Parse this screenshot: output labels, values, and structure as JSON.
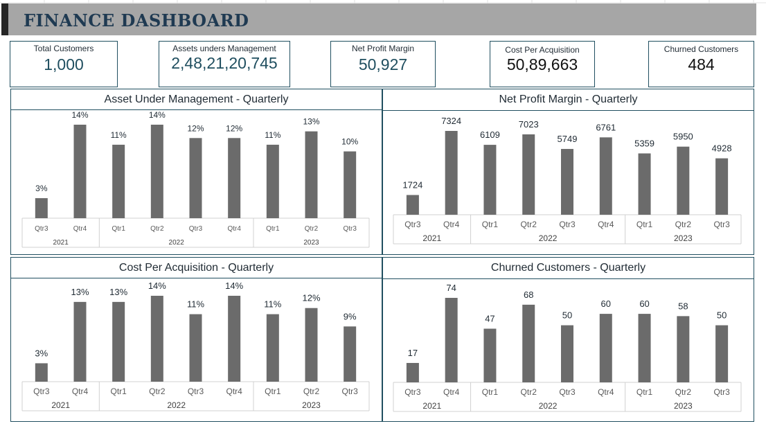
{
  "dashboard": {
    "title": "FINANCE DASHBOARD"
  },
  "kpis": [
    {
      "label": "Total Customers",
      "value": "1,000"
    },
    {
      "label": "Assets unders Management",
      "value": "2,48,21,20,745"
    },
    {
      "label": "Net Profit Margin",
      "value": "50,927"
    },
    {
      "label": "Cost Per Acquisition",
      "value": "50,89,663"
    },
    {
      "label": "Churned Customers",
      "value": "484"
    }
  ],
  "colors": {
    "bar": "#6b6b6b",
    "frame": "#1f4e5f",
    "header": "#a6a6a6",
    "title": "#1f3a52"
  },
  "chart_data": [
    {
      "type": "bar",
      "title": "Asset Under Management - Quarterly",
      "categories": [
        "Qtr3",
        "Qtr4",
        "Qtr1",
        "Qtr2",
        "Qtr3",
        "Qtr4",
        "Qtr1",
        "Qtr2",
        "Qtr3"
      ],
      "groups": [
        {
          "label": "2021",
          "count": 2
        },
        {
          "label": "2022",
          "count": 4
        },
        {
          "label": "2023",
          "count": 3
        }
      ],
      "values": [
        3,
        14,
        11,
        14,
        12,
        12,
        11,
        13,
        10
      ],
      "labels": [
        "3%",
        "14%",
        "11%",
        "14%",
        "12%",
        "12%",
        "11%",
        "13%",
        "10%"
      ],
      "ylim": [
        0,
        14
      ]
    },
    {
      "type": "bar",
      "title": "Net Profit Margin - Quarterly",
      "categories": [
        "Qtr3",
        "Qtr4",
        "Qtr1",
        "Qtr2",
        "Qtr3",
        "Qtr4",
        "Qtr1",
        "Qtr2",
        "Qtr3"
      ],
      "groups": [
        {
          "label": "2021",
          "count": 2
        },
        {
          "label": "2022",
          "count": 4
        },
        {
          "label": "2023",
          "count": 3
        }
      ],
      "values": [
        1724,
        7324,
        6109,
        7023,
        5749,
        6761,
        5359,
        5950,
        4928
      ],
      "labels": [
        "1724",
        "7324",
        "6109",
        "7023",
        "5749",
        "6761",
        "5359",
        "5950",
        "4928"
      ],
      "ylim": [
        0,
        7324
      ]
    },
    {
      "type": "bar",
      "title": "Cost Per Acquisition - Quarterly",
      "categories": [
        "Qtr3",
        "Qtr4",
        "Qtr1",
        "Qtr2",
        "Qtr3",
        "Qtr4",
        "Qtr1",
        "Qtr2",
        "Qtr3"
      ],
      "groups": [
        {
          "label": "2021",
          "count": 2
        },
        {
          "label": "2022",
          "count": 4
        },
        {
          "label": "2023",
          "count": 3
        }
      ],
      "values": [
        3,
        13,
        13,
        14,
        11,
        14,
        11,
        12,
        9
      ],
      "labels": [
        "3%",
        "13%",
        "13%",
        "14%",
        "11%",
        "14%",
        "11%",
        "12%",
        "9%"
      ],
      "ylim": [
        0,
        14
      ]
    },
    {
      "type": "bar",
      "title": "Churned Customers - Quarterly",
      "categories": [
        "Qtr3",
        "Qtr4",
        "Qtr1",
        "Qtr2",
        "Qtr3",
        "Qtr4",
        "Qtr1",
        "Qtr2",
        "Qtr3"
      ],
      "groups": [
        {
          "label": "2021",
          "count": 2
        },
        {
          "label": "2022",
          "count": 4
        },
        {
          "label": "2023",
          "count": 3
        }
      ],
      "values": [
        17,
        74,
        47,
        68,
        50,
        60,
        60,
        58,
        50
      ],
      "labels": [
        "17",
        "74",
        "47",
        "68",
        "50",
        "60",
        "60",
        "58",
        "50"
      ],
      "ylim": [
        0,
        74
      ]
    }
  ]
}
